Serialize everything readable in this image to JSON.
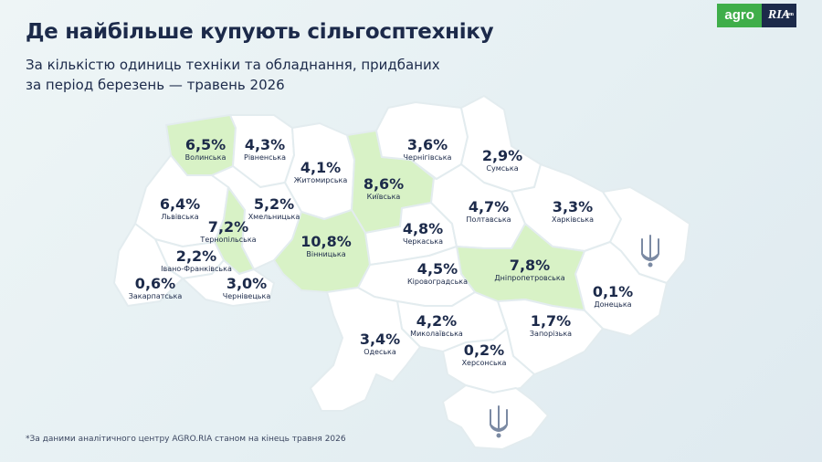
{
  "header": {
    "title": "Де найбільше купують сільгосптехніку",
    "subtitle": "За кількістю одиниць техніки та обладнання, придбаних за період березень — травень 2026"
  },
  "logo": {
    "agro": "agro",
    "ria": "RIA",
    "ria_small": ".com"
  },
  "colors": {
    "region_fill": "#ffffff",
    "highlight_fill": "#d8f2c6",
    "text": "#1c2a4a",
    "accent": "#3fae4a"
  },
  "regions": [
    {
      "id": "volyn",
      "name": "Волинська",
      "value": "6,5%",
      "highlight": true
    },
    {
      "id": "rivne",
      "name": "Рівненська",
      "value": "4,3%",
      "highlight": false
    },
    {
      "id": "zhytomyr",
      "name": "Житомирська",
      "value": "4,1%",
      "highlight": false
    },
    {
      "id": "kyiv",
      "name": "Київська",
      "value": "8,6%",
      "highlight": true
    },
    {
      "id": "chernihiv",
      "name": "Чернігівська",
      "value": "3,6%",
      "highlight": false
    },
    {
      "id": "sumy",
      "name": "Сумська",
      "value": "2,9%",
      "highlight": false
    },
    {
      "id": "lviv",
      "name": "Львівська",
      "value": "6,4%",
      "highlight": false
    },
    {
      "id": "khmelnytskyi",
      "name": "Хмельницька",
      "value": "5,2%",
      "highlight": false
    },
    {
      "id": "ternopil",
      "name": "Тернопільська",
      "value": "7,2%",
      "highlight": true
    },
    {
      "id": "poltava",
      "name": "Полтавська",
      "value": "4,7%",
      "highlight": false
    },
    {
      "id": "kharkiv",
      "name": "Харківська",
      "value": "3,3%",
      "highlight": false
    },
    {
      "id": "cherkasy",
      "name": "Черкаська",
      "value": "4,8%",
      "highlight": false
    },
    {
      "id": "vinnytsia",
      "name": "Вінницька",
      "value": "10,8%",
      "highlight": true
    },
    {
      "id": "ivano_frankivsk",
      "name": "Івано-Франківська",
      "value": "2,2%",
      "highlight": false
    },
    {
      "id": "zakarpattia",
      "name": "Закарпатська",
      "value": "0,6%",
      "highlight": false
    },
    {
      "id": "chernivtsi",
      "name": "Чернівецька",
      "value": "3,0%",
      "highlight": false
    },
    {
      "id": "kirovohrad",
      "name": "Кіровоградська",
      "value": "4,5%",
      "highlight": false
    },
    {
      "id": "dnipro",
      "name": "Дніпропетровська",
      "value": "7,8%",
      "highlight": true
    },
    {
      "id": "donetsk",
      "name": "Донецька",
      "value": "0,1%",
      "highlight": false
    },
    {
      "id": "mykolaiv",
      "name": "Миколаївська",
      "value": "4,2%",
      "highlight": false
    },
    {
      "id": "zaporizhzhia",
      "name": "Запорізька",
      "value": "1,7%",
      "highlight": false
    },
    {
      "id": "odesa",
      "name": "Одеська",
      "value": "3,4%",
      "highlight": false
    },
    {
      "id": "kherson",
      "name": "Херсонська",
      "value": "0,2%",
      "highlight": false
    }
  ],
  "icons": [
    "trident-icon"
  ],
  "footnote": "*За даними аналітичного центру AGRO.RIA станом на кінець травня 2026"
}
